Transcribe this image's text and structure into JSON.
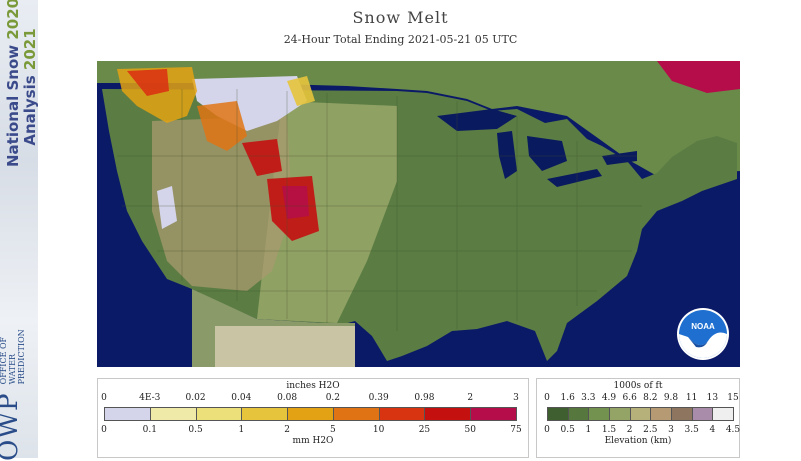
{
  "title": "Snow Melt",
  "subtitle": "24-Hour Total Ending 2021-05-21 05 UTC",
  "sidebar": {
    "line1_text": "National Snow",
    "line1_year": "2020",
    "line2_text": "Analysis",
    "line2_year": "2021",
    "owp_big": "OWP",
    "owp_small": [
      "Office of",
      "Water",
      "Prediction"
    ]
  },
  "logo": {
    "text": "NOAA",
    "icon": "noaa-logo-icon"
  },
  "snowmelt_legend": {
    "top_unit": "inches H2O",
    "bottom_unit": "mm H2O",
    "top_ticks": [
      "0",
      "4E-3",
      "0.02",
      "0.04",
      "0.08",
      "0.2",
      "0.39",
      "0.98",
      "2",
      "3"
    ],
    "bottom_ticks": [
      "0",
      "0.1",
      "0.5",
      "1",
      "2",
      "5",
      "10",
      "25",
      "50",
      "75"
    ],
    "colors": [
      "#d4d4ea",
      "#efeaa7",
      "#ece07a",
      "#e6c43c",
      "#e3a213",
      "#e07414",
      "#d93412",
      "#c4100f",
      "#b40d49"
    ]
  },
  "elevation_legend": {
    "top_unit": "1000s of ft",
    "bottom_unit": "Elevation (km)",
    "top_ticks": [
      "0",
      "1.6",
      "3.3",
      "4.9",
      "6.6",
      "8.2",
      "9.8",
      "11",
      "13",
      "15"
    ],
    "bottom_ticks": [
      "0",
      "0.5",
      "1",
      "1.5",
      "2",
      "2.5",
      "3",
      "3.5",
      "4",
      "4.5"
    ],
    "colors": [
      "#3f5f30",
      "#56783f",
      "#73924f",
      "#93a466",
      "#b6b07a",
      "#b59a73",
      "#8e7560",
      "#a98baa",
      "#efefef"
    ]
  },
  "map": {
    "ocean_color": "#0b1a66",
    "land_color": "#5b7d44",
    "great_lakes_color": "#0a1a5e",
    "canada_color": "#6a8a4a"
  }
}
